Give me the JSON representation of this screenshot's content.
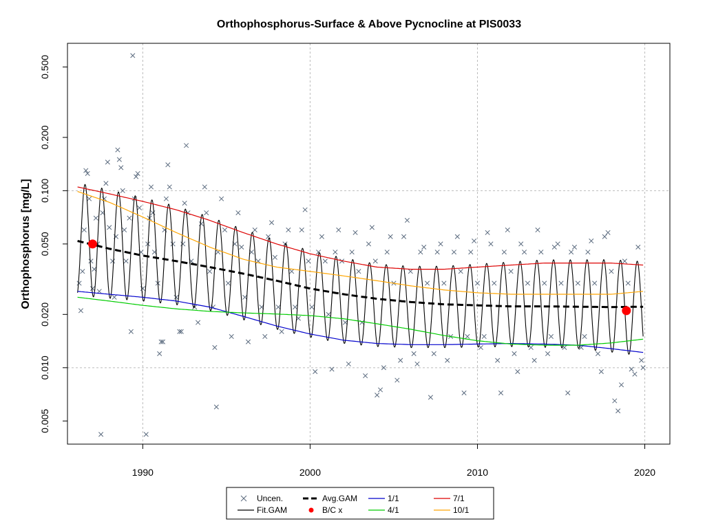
{
  "chart_data": {
    "type": "scatter",
    "title": "Orthophosphorus-Surface & Above Pycnocline at PIS0033",
    "xlabel": "",
    "ylabel": "Orthophosphorus [mg/L]",
    "xlim": [
      1985.5,
      2021.5
    ],
    "ylim": [
      0.0037,
      0.68
    ],
    "ylog": true,
    "grid": true,
    "xticks": [
      1990,
      2000,
      2010,
      2020
    ],
    "yticks": [
      0.005,
      0.01,
      0.02,
      0.05,
      0.1,
      0.2,
      0.5
    ],
    "ytick_labels": [
      "0.005",
      "0.010",
      "0.020",
      "0.050",
      "0.100",
      "0.200",
      "0.500"
    ],
    "legend_position": "bottom-center",
    "legend": [
      {
        "key": "uncen",
        "label": "Uncen."
      },
      {
        "key": "avg",
        "label": "Avg.GAM"
      },
      {
        "key": "s1",
        "label": "1/1"
      },
      {
        "key": "s7",
        "label": "7/1"
      },
      {
        "key": "fit",
        "label": "Fit.GAM"
      },
      {
        "key": "bc",
        "label": "B/C x"
      },
      {
        "key": "s4",
        "label": "4/1"
      },
      {
        "key": "s10",
        "label": "10/1"
      }
    ],
    "colors": {
      "uncen": "#5a6a7e",
      "fit": "#000000",
      "avg": "#000000",
      "s1": "#0000cc",
      "s4": "#00cc00",
      "s7": "#dd0000",
      "s10": "#ffa500",
      "bc": "#ff0000",
      "grid": "#bbbbbb"
    },
    "series": [
      {
        "key": "avg",
        "x": [
          1986.1,
          1988,
          1990,
          1992,
          1994,
          1996,
          1998,
          2000,
          2002,
          2004,
          2006,
          2008,
          2010,
          2012,
          2014,
          2016,
          2018,
          2019.9
        ],
        "y": [
          0.052,
          0.047,
          0.043,
          0.04,
          0.037,
          0.034,
          0.031,
          0.028,
          0.026,
          0.0245,
          0.0235,
          0.0228,
          0.0225,
          0.0222,
          0.0222,
          0.0221,
          0.022,
          0.0221
        ]
      },
      {
        "key": "s1",
        "x": [
          1986.1,
          1988,
          1990,
          1992,
          1994,
          1996,
          1998,
          2000,
          2002,
          2004,
          2006,
          2008,
          2010,
          2012,
          2014,
          2016,
          2018,
          2019.9
        ],
        "y": [
          0.027,
          0.026,
          0.025,
          0.0238,
          0.022,
          0.0195,
          0.0172,
          0.0155,
          0.0143,
          0.0137,
          0.0135,
          0.0135,
          0.0136,
          0.0137,
          0.0136,
          0.0134,
          0.0128,
          0.0122
        ]
      },
      {
        "key": "s4",
        "x": [
          1986.1,
          1988,
          1990,
          1992,
          1994,
          1996,
          1998,
          2000,
          2002,
          2004,
          2006,
          2008,
          2010,
          2012,
          2014,
          2016,
          2018,
          2019.9
        ],
        "y": [
          0.025,
          0.0238,
          0.0225,
          0.0215,
          0.0208,
          0.0204,
          0.0201,
          0.0197,
          0.0189,
          0.0177,
          0.0165,
          0.0152,
          0.0142,
          0.0136,
          0.0134,
          0.0134,
          0.0138,
          0.0145
        ]
      },
      {
        "key": "s7",
        "x": [
          1986.1,
          1988,
          1990,
          1992,
          1994,
          1996,
          1998,
          2000,
          2002,
          2004,
          2006,
          2008,
          2010,
          2012,
          2014,
          2016,
          2018,
          2019.9
        ],
        "y": [
          0.105,
          0.096,
          0.087,
          0.078,
          0.068,
          0.058,
          0.05,
          0.044,
          0.04,
          0.037,
          0.036,
          0.036,
          0.037,
          0.038,
          0.039,
          0.039,
          0.039,
          0.038
        ]
      },
      {
        "key": "s10",
        "x": [
          1986.1,
          1988,
          1990,
          1992,
          1994,
          1996,
          1998,
          2000,
          2002,
          2004,
          2006,
          2008,
          2010,
          2012,
          2014,
          2016,
          2018,
          2019.9
        ],
        "y": [
          0.099,
          0.086,
          0.071,
          0.058,
          0.048,
          0.041,
          0.037,
          0.035,
          0.033,
          0.031,
          0.029,
          0.0275,
          0.0265,
          0.026,
          0.026,
          0.026,
          0.026,
          0.027
        ]
      }
    ],
    "fit_gam": {
      "key": "fit",
      "x_range": [
        1986.1,
        2019.9
      ],
      "cycles_per_year": 1,
      "upper_envelope": "s7",
      "lower_envelope": "s1",
      "phase_note": "seasonal cycle between 1/1 and 7/1 curves"
    },
    "bc_points": [
      {
        "x": 1987.0,
        "y": 0.05
      },
      {
        "x": 2018.9,
        "y": 0.021
      }
    ],
    "uncensored_points": [
      [
        1986.2,
        0.03
      ],
      [
        1986.3,
        0.021
      ],
      [
        1986.4,
        0.035
      ],
      [
        1986.5,
        0.06
      ],
      [
        1986.6,
        0.13
      ],
      [
        1986.7,
        0.125
      ],
      [
        1986.8,
        0.09
      ],
      [
        1986.9,
        0.04
      ],
      [
        1987.0,
        0.028
      ],
      [
        1987.1,
        0.036
      ],
      [
        1987.2,
        0.07
      ],
      [
        1987.3,
        0.05
      ],
      [
        1987.4,
        0.027
      ],
      [
        1987.5,
        0.0042
      ],
      [
        1987.6,
        0.075
      ],
      [
        1987.7,
        0.09
      ],
      [
        1987.8,
        0.11
      ],
      [
        1987.9,
        0.145
      ],
      [
        1988.0,
        0.062
      ],
      [
        1988.2,
        0.04
      ],
      [
        1988.3,
        0.025
      ],
      [
        1988.4,
        0.055
      ],
      [
        1988.5,
        0.17
      ],
      [
        1988.6,
        0.15
      ],
      [
        1988.7,
        0.135
      ],
      [
        1988.8,
        0.1
      ],
      [
        1988.9,
        0.06
      ],
      [
        1989.0,
        0.04
      ],
      [
        1989.2,
        0.07
      ],
      [
        1989.3,
        0.016
      ],
      [
        1989.4,
        0.58
      ],
      [
        1989.5,
        0.09
      ],
      [
        1989.6,
        0.12
      ],
      [
        1989.7,
        0.125
      ],
      [
        1989.8,
        0.08
      ],
      [
        1989.9,
        0.045
      ],
      [
        1990.0,
        0.028
      ],
      [
        1990.2,
        0.0042
      ],
      [
        1990.3,
        0.05
      ],
      [
        1990.4,
        0.07
      ],
      [
        1990.5,
        0.105
      ],
      [
        1990.6,
        0.075
      ],
      [
        1990.7,
        0.045
      ],
      [
        1990.9,
        0.03
      ],
      [
        1991.0,
        0.012
      ],
      [
        1991.1,
        0.014
      ],
      [
        1991.2,
        0.014
      ],
      [
        1991.3,
        0.06
      ],
      [
        1991.4,
        0.09
      ],
      [
        1991.5,
        0.14
      ],
      [
        1991.6,
        0.105
      ],
      [
        1991.8,
        0.05
      ],
      [
        1992.0,
        0.025
      ],
      [
        1992.2,
        0.016
      ],
      [
        1992.3,
        0.016
      ],
      [
        1992.4,
        0.05
      ],
      [
        1992.5,
        0.085
      ],
      [
        1992.6,
        0.18
      ],
      [
        1992.7,
        0.075
      ],
      [
        1992.9,
        0.04
      ],
      [
        1993.1,
        0.022
      ],
      [
        1993.3,
        0.018
      ],
      [
        1993.5,
        0.065
      ],
      [
        1993.7,
        0.105
      ],
      [
        1993.8,
        0.075
      ],
      [
        1994.0,
        0.035
      ],
      [
        1994.2,
        0.022
      ],
      [
        1994.3,
        0.013
      ],
      [
        1994.4,
        0.006
      ],
      [
        1994.5,
        0.045
      ],
      [
        1994.7,
        0.09
      ],
      [
        1994.9,
        0.06
      ],
      [
        1995.1,
        0.03
      ],
      [
        1995.3,
        0.015
      ],
      [
        1995.5,
        0.05
      ],
      [
        1995.7,
        0.075
      ],
      [
        1995.9,
        0.048
      ],
      [
        1996.1,
        0.025
      ],
      [
        1996.3,
        0.014
      ],
      [
        1996.5,
        0.045
      ],
      [
        1996.7,
        0.06
      ],
      [
        1996.9,
        0.04
      ],
      [
        1997.1,
        0.022
      ],
      [
        1997.3,
        0.015
      ],
      [
        1997.5,
        0.055
      ],
      [
        1997.7,
        0.066
      ],
      [
        1997.9,
        0.042
      ],
      [
        1998.1,
        0.022
      ],
      [
        1998.3,
        0.016
      ],
      [
        1998.5,
        0.05
      ],
      [
        1998.7,
        0.06
      ],
      [
        1998.9,
        0.035
      ],
      [
        1999.1,
        0.022
      ],
      [
        1999.3,
        0.019
      ],
      [
        1999.5,
        0.06
      ],
      [
        1999.7,
        0.078
      ],
      [
        1999.9,
        0.04
      ],
      [
        2000.1,
        0.022
      ],
      [
        2000.3,
        0.0095
      ],
      [
        2000.5,
        0.045
      ],
      [
        2000.7,
        0.055
      ],
      [
        2000.9,
        0.04
      ],
      [
        2001.1,
        0.02
      ],
      [
        2001.3,
        0.0098
      ],
      [
        2001.5,
        0.045
      ],
      [
        2001.7,
        0.06
      ],
      [
        2001.9,
        0.04
      ],
      [
        2002.1,
        0.018
      ],
      [
        2002.3,
        0.0105
      ],
      [
        2002.5,
        0.045
      ],
      [
        2002.7,
        0.058
      ],
      [
        2002.9,
        0.035
      ],
      [
        2003.1,
        0.018
      ],
      [
        2003.3,
        0.009
      ],
      [
        2003.5,
        0.05
      ],
      [
        2003.7,
        0.062
      ],
      [
        2003.9,
        0.04
      ],
      [
        2004.0,
        0.007
      ],
      [
        2004.2,
        0.0075
      ],
      [
        2004.4,
        0.01
      ],
      [
        2004.6,
        0.045
      ],
      [
        2004.8,
        0.055
      ],
      [
        2005.0,
        0.03
      ],
      [
        2005.2,
        0.0085
      ],
      [
        2005.4,
        0.011
      ],
      [
        2005.6,
        0.055
      ],
      [
        2005.8,
        0.068
      ],
      [
        2006.0,
        0.035
      ],
      [
        2006.2,
        0.012
      ],
      [
        2006.4,
        0.0105
      ],
      [
        2006.6,
        0.045
      ],
      [
        2006.8,
        0.048
      ],
      [
        2007.0,
        0.03
      ],
      [
        2007.2,
        0.0068
      ],
      [
        2007.4,
        0.012
      ],
      [
        2007.6,
        0.045
      ],
      [
        2007.8,
        0.05
      ],
      [
        2008.0,
        0.03
      ],
      [
        2008.2,
        0.011
      ],
      [
        2008.4,
        0.015
      ],
      [
        2008.6,
        0.045
      ],
      [
        2008.8,
        0.055
      ],
      [
        2009.0,
        0.035
      ],
      [
        2009.2,
        0.0072
      ],
      [
        2009.4,
        0.015
      ],
      [
        2009.6,
        0.045
      ],
      [
        2009.8,
        0.052
      ],
      [
        2010.0,
        0.03
      ],
      [
        2010.2,
        0.013
      ],
      [
        2010.4,
        0.015
      ],
      [
        2010.6,
        0.058
      ],
      [
        2010.8,
        0.05
      ],
      [
        2011.0,
        0.03
      ],
      [
        2011.2,
        0.011
      ],
      [
        2011.4,
        0.0072
      ],
      [
        2011.6,
        0.045
      ],
      [
        2011.8,
        0.06
      ],
      [
        2012.0,
        0.035
      ],
      [
        2012.2,
        0.012
      ],
      [
        2012.4,
        0.0095
      ],
      [
        2012.6,
        0.05
      ],
      [
        2012.8,
        0.045
      ],
      [
        2013.0,
        0.03
      ],
      [
        2013.2,
        0.013
      ],
      [
        2013.4,
        0.011
      ],
      [
        2013.6,
        0.06
      ],
      [
        2013.8,
        0.045
      ],
      [
        2014.0,
        0.03
      ],
      [
        2014.2,
        0.012
      ],
      [
        2014.4,
        0.015
      ],
      [
        2014.6,
        0.048
      ],
      [
        2014.8,
        0.05
      ],
      [
        2015.0,
        0.03
      ],
      [
        2015.2,
        0.013
      ],
      [
        2015.4,
        0.0072
      ],
      [
        2015.6,
        0.045
      ],
      [
        2015.8,
        0.048
      ],
      [
        2016.0,
        0.03
      ],
      [
        2016.2,
        0.013
      ],
      [
        2016.4,
        0.015
      ],
      [
        2016.6,
        0.045
      ],
      [
        2016.8,
        0.052
      ],
      [
        2017.0,
        0.03
      ],
      [
        2017.2,
        0.012
      ],
      [
        2017.4,
        0.0095
      ],
      [
        2017.6,
        0.055
      ],
      [
        2017.8,
        0.058
      ],
      [
        2018.0,
        0.035
      ],
      [
        2018.2,
        0.0065
      ],
      [
        2018.4,
        0.0057
      ],
      [
        2018.6,
        0.008
      ],
      [
        2018.8,
        0.04
      ],
      [
        2019.0,
        0.03
      ],
      [
        2019.2,
        0.0098
      ],
      [
        2019.4,
        0.0092
      ],
      [
        2019.6,
        0.048
      ],
      [
        2019.8,
        0.011
      ],
      [
        2019.9,
        0.01
      ]
    ]
  }
}
